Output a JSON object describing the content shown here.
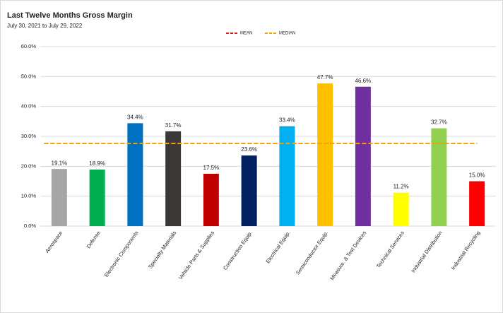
{
  "chart_data": {
    "type": "bar",
    "title": "Last Twelve Months Gross Margin",
    "subtitle": "July 30, 2021 to July 29, 2022",
    "categories": [
      "Aerospace",
      "Defense",
      "Electronic Components",
      "Specialty Materials",
      "Vehicle Parts & Supplies",
      "Construction Equip.",
      "Electrical Equip.",
      "Semiconductor Equip.",
      "Measure. & Test Devices",
      "Technical Services",
      "Industrial Distribution",
      "Industrial Recycling"
    ],
    "values": [
      19.1,
      18.9,
      34.4,
      31.7,
      17.5,
      23.6,
      33.4,
      47.7,
      46.6,
      11.2,
      32.7,
      15.0
    ],
    "value_labels": [
      "19.1%",
      "18.9%",
      "34.4%",
      "31.7%",
      "17.5%",
      "23.6%",
      "33.4%",
      "47.7%",
      "46.6%",
      "11.2%",
      "32.7%",
      "15.0%"
    ],
    "colors": [
      "#a6a6a6",
      "#00b050",
      "#0070c0",
      "#3b3838",
      "#c00000",
      "#002060",
      "#00b0f0",
      "#ffc000",
      "#7030a0",
      "#ffff00",
      "#92d050",
      "#ff0000"
    ],
    "reference_lines": [
      {
        "name": "MEAN",
        "value": 27.65,
        "color": "#e02020"
      },
      {
        "name": "MEDIAN",
        "value": 27.65,
        "color": "#f4a300"
      }
    ],
    "ylim": [
      0,
      60
    ],
    "yticks": [
      {
        "value": 0,
        "label": "0.0%"
      },
      {
        "value": 10,
        "label": "10.0%"
      },
      {
        "value": 20,
        "label": "20.0%"
      },
      {
        "value": 30,
        "label": "30.0%"
      },
      {
        "value": 40,
        "label": "40.0%"
      },
      {
        "value": 50,
        "label": "50.0%"
      },
      {
        "value": 60,
        "label": "60.0%"
      }
    ],
    "grid": true
  }
}
